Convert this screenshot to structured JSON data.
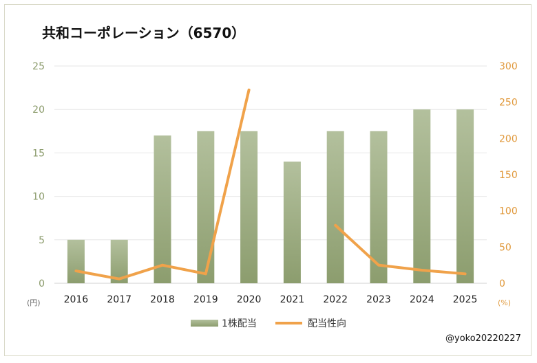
{
  "chart_data": {
    "type": "bar+line",
    "title": "共和コーポレーション（6570）",
    "categories": [
      "2016",
      "2017",
      "2018",
      "2019",
      "2020",
      "2021",
      "2022",
      "2023",
      "2024",
      "2025"
    ],
    "series": [
      {
        "name": "1株配当",
        "type": "bar",
        "axis": "left",
        "values": [
          5,
          5,
          17,
          17.5,
          17.5,
          14,
          17.5,
          17.5,
          20,
          20
        ]
      },
      {
        "name": "配当性向",
        "type": "line",
        "axis": "right",
        "values": [
          17,
          6,
          25,
          13,
          267,
          null,
          80,
          25,
          18,
          13
        ]
      }
    ],
    "y_left": {
      "min": 0,
      "max": 25,
      "ticks": [
        "0",
        "5",
        "10",
        "15",
        "20",
        "25"
      ],
      "unit": "(円)"
    },
    "y_right": {
      "min": 0,
      "max": 300,
      "ticks": [
        "0",
        "50",
        "100",
        "150",
        "200",
        "250",
        "300"
      ],
      "unit": "(%)"
    },
    "legend": [
      "1株配当",
      "配当性向"
    ],
    "colors": {
      "bar_top": "#b3c09d",
      "bar_bottom": "#8c9d6e",
      "line": "#f0a24a",
      "grid": "#e6e6e6",
      "left_axis": "#8a9a6a",
      "right_axis": "#e0983a"
    }
  },
  "credit": "@yoko20220227"
}
